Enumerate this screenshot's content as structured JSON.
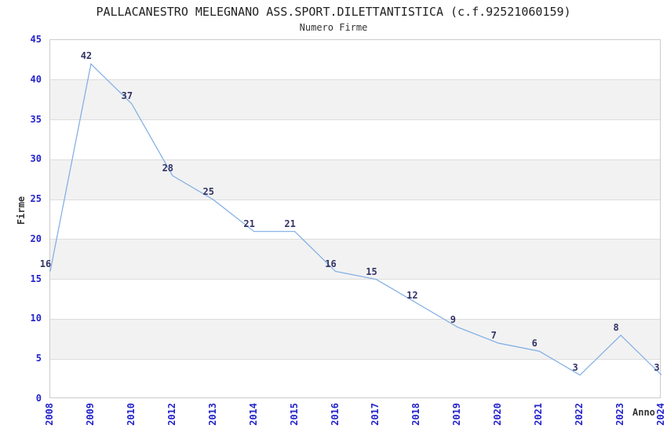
{
  "header": {
    "title": "PALLACANESTRO MELEGNANO ASS.SPORT.DILETTANTISTICA (c.f.92521060159)",
    "subtitle": "Numero Firme"
  },
  "chart_data": {
    "type": "line",
    "title": "PALLACANESTRO MELEGNANO ASS.SPORT.DILETTANTISTICA (c.f.92521060159)",
    "subtitle": "Numero Firme",
    "xlabel": "Anno",
    "ylabel": "Firme",
    "categories": [
      "2008",
      "2009",
      "2010",
      "2012",
      "2013",
      "2014",
      "2015",
      "2016",
      "2017",
      "2018",
      "2019",
      "2020",
      "2021",
      "2022",
      "2023",
      "2024"
    ],
    "values": [
      16,
      42,
      37,
      28,
      25,
      21,
      21,
      16,
      15,
      12,
      9,
      7,
      6,
      3,
      8,
      3
    ],
    "ylim": [
      0,
      45
    ],
    "yticks": [
      0,
      5,
      10,
      15,
      20,
      25,
      30,
      35,
      40,
      45
    ],
    "bands": [
      [
        5,
        10
      ],
      [
        15,
        20
      ],
      [
        25,
        30
      ],
      [
        35,
        40
      ]
    ],
    "grid": "horizontal",
    "legend_position": "none",
    "colors": {
      "line": "#7dace4",
      "data_label": "#333366",
      "tick_label": "#2323cc",
      "band": "#f2f2f2",
      "gridline": "#dddddd",
      "plot_border": "#cccccc",
      "title": "#222222",
      "axis_label": "#333333",
      "background": "#ffffff"
    }
  }
}
